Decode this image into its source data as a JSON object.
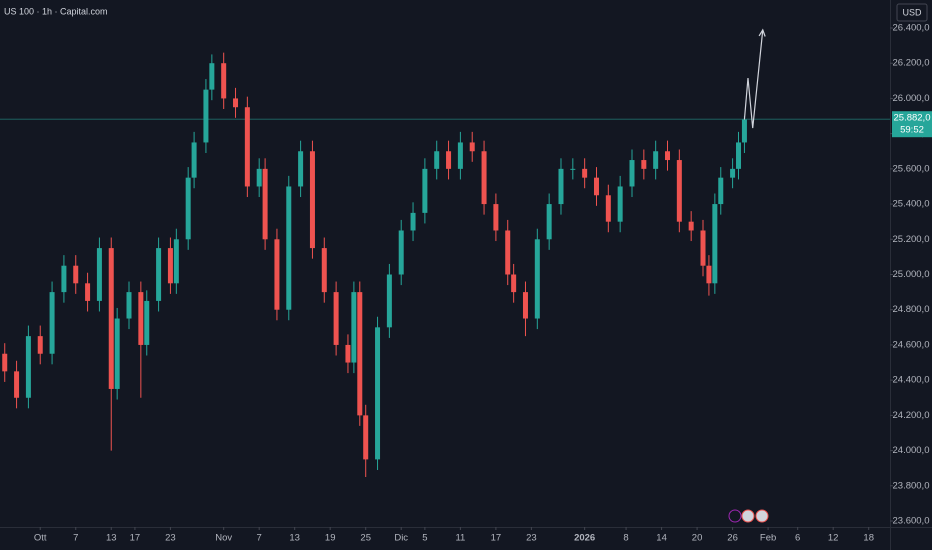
{
  "chart_data": {
    "type": "candlestick",
    "title": "US 100 · 1h · Capital.com",
    "currency": "USD",
    "x": [
      -6,
      -4,
      -2,
      0,
      2,
      4,
      6,
      8,
      10,
      12,
      13,
      15,
      17,
      18,
      20,
      22,
      23,
      25,
      26,
      28,
      29,
      31,
      33,
      35,
      37,
      38,
      40,
      42,
      44,
      46,
      48,
      50,
      52,
      53,
      54,
      55,
      57,
      59,
      61,
      63,
      65,
      67,
      69,
      71,
      73,
      75,
      77,
      79,
      80,
      82,
      84,
      86,
      88,
      90,
      92,
      94,
      96,
      98,
      100,
      102,
      104,
      106,
      108,
      110,
      112,
      113,
      114,
      115,
      117,
      118,
      119
    ],
    "open": [
      24550,
      24450,
      24300,
      24650,
      24550,
      24900,
      25050,
      24950,
      24850,
      25150,
      24350,
      24750,
      24900,
      24600,
      24850,
      25150,
      24950,
      25200,
      25550,
      25750,
      26050,
      26200,
      26000,
      25950,
      25500,
      25600,
      25200,
      24800,
      25500,
      25700,
      25150,
      24900,
      24600,
      24500,
      24900,
      24200,
      23950,
      24700,
      25000,
      25250,
      25350,
      25600,
      25700,
      25600,
      25750,
      25700,
      25400,
      25250,
      25000,
      24900,
      24750,
      25200,
      25400,
      25600,
      25600,
      25550,
      25450,
      25300,
      25500,
      25650,
      25600,
      25700,
      25650,
      25300,
      25250,
      25050,
      24950,
      25400,
      25550,
      25600,
      25750
    ],
    "high": [
      24610,
      24510,
      24710,
      24710,
      24960,
      25110,
      25110,
      25010,
      25210,
      25210,
      24810,
      24960,
      24960,
      24910,
      25210,
      25210,
      25260,
      25610,
      25810,
      26110,
      26250,
      26260,
      26060,
      26010,
      25660,
      25660,
      25260,
      25560,
      25760,
      25760,
      25210,
      24960,
      24660,
      24960,
      24960,
      24260,
      24760,
      25060,
      25310,
      25410,
      25660,
      25760,
      25760,
      25810,
      25810,
      25760,
      25460,
      25310,
      25060,
      24960,
      25260,
      25460,
      25660,
      25660,
      25660,
      25610,
      25510,
      25560,
      25710,
      25710,
      25760,
      25760,
      25710,
      25360,
      25310,
      25110,
      25460,
      25610,
      25660,
      25810,
      25900
    ],
    "low": [
      24390,
      24240,
      24240,
      24490,
      24490,
      24840,
      24890,
      24790,
      24790,
      24000,
      24290,
      24690,
      24300,
      24540,
      24790,
      24890,
      24890,
      25140,
      25490,
      25690,
      25990,
      25940,
      25890,
      25440,
      25440,
      25140,
      24740,
      24740,
      25440,
      25090,
      24840,
      24540,
      24440,
      24440,
      24140,
      23850,
      23890,
      24640,
      24940,
      25190,
      25290,
      25540,
      25540,
      25540,
      25640,
      25340,
      25190,
      24940,
      24840,
      24650,
      24690,
      25140,
      25340,
      25540,
      25490,
      25390,
      25240,
      25240,
      25440,
      25540,
      25540,
      25590,
      25240,
      25190,
      24990,
      24880,
      24890,
      25340,
      25490,
      25540,
      25690
    ],
    "close": [
      24450,
      24300,
      24650,
      24550,
      24900,
      25050,
      24950,
      24850,
      25150,
      24350,
      24750,
      24900,
      24600,
      24850,
      25150,
      24950,
      25200,
      25550,
      25750,
      26050,
      26200,
      26000,
      25950,
      25500,
      25600,
      25200,
      24800,
      25500,
      25700,
      25150,
      24900,
      24600,
      24500,
      24900,
      24200,
      23950,
      24700,
      25000,
      25250,
      25350,
      25600,
      25700,
      25600,
      25750,
      25700,
      25400,
      25250,
      25000,
      24900,
      24750,
      25200,
      25400,
      25600,
      25600,
      25550,
      25450,
      25300,
      25500,
      25650,
      25600,
      25700,
      25650,
      25300,
      25250,
      25050,
      24950,
      25400,
      25550,
      25600,
      25750,
      25880
    ],
    "up_color": "#26a69a",
    "down_color": "#ef5350",
    "projection": {
      "x": [
        119,
        119.6,
        120.4,
        122.1
      ],
      "y": [
        25880,
        26116,
        25832,
        26389
      ],
      "color": "#d1d4dc"
    },
    "last_price": {
      "value": 25882,
      "label": "25.882,0",
      "countdown": "59:52",
      "color": "#26a69a"
    },
    "xlim": [
      -6.8,
      143.6
    ],
    "ylim": [
      23566,
      26559
    ],
    "yticks": [
      {
        "value": 23600,
        "label": "23.600,0"
      },
      {
        "value": 23800,
        "label": "23.800,0"
      },
      {
        "value": 24000,
        "label": "24.000,0"
      },
      {
        "value": 24200,
        "label": "24.200,0"
      },
      {
        "value": 24400,
        "label": "24.400,0"
      },
      {
        "value": 24600,
        "label": "24.600,0"
      },
      {
        "value": 24800,
        "label": "24.800,0"
      },
      {
        "value": 25000,
        "label": "25.000,0"
      },
      {
        "value": 25200,
        "label": "25.200,0"
      },
      {
        "value": 25400,
        "label": "25.400,0"
      },
      {
        "value": 25600,
        "label": "25.600,0"
      },
      {
        "value": 25800,
        "label": "25.800,0"
      },
      {
        "value": 26000,
        "label": "26.000,0"
      },
      {
        "value": 26200,
        "label": "26.200,0"
      },
      {
        "value": 26400,
        "label": "26.400,0"
      }
    ],
    "xticks": [
      {
        "value": 0,
        "label": "Ott"
      },
      {
        "value": 6,
        "label": "7"
      },
      {
        "value": 12,
        "label": "13"
      },
      {
        "value": 16,
        "label": "17"
      },
      {
        "value": 22,
        "label": "23"
      },
      {
        "value": 31,
        "label": "Nov"
      },
      {
        "value": 37,
        "label": "7"
      },
      {
        "value": 43,
        "label": "13"
      },
      {
        "value": 49,
        "label": "19"
      },
      {
        "value": 55,
        "label": "25"
      },
      {
        "value": 61,
        "label": "Dic"
      },
      {
        "value": 65,
        "label": "5"
      },
      {
        "value": 71,
        "label": "11"
      },
      {
        "value": 77,
        "label": "17"
      },
      {
        "value": 83,
        "label": "23"
      },
      {
        "value": 92,
        "label": "2026",
        "bold": true
      },
      {
        "value": 99,
        "label": "8"
      },
      {
        "value": 105,
        "label": "14"
      },
      {
        "value": 111,
        "label": "20"
      },
      {
        "value": 117,
        "label": "26"
      },
      {
        "value": 123,
        "label": "Feb"
      },
      {
        "value": 128,
        "label": "6"
      },
      {
        "value": 134,
        "label": "12"
      },
      {
        "value": 140,
        "label": "18"
      }
    ],
    "grid": false
  }
}
